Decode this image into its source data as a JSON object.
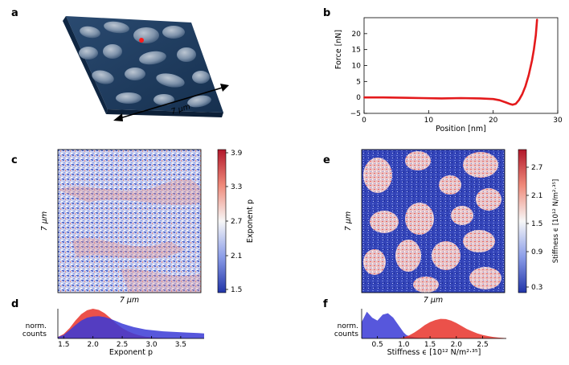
{
  "panels": {
    "a": {
      "letter": "a",
      "scale_label": "7 μm"
    },
    "b": {
      "letter": "b"
    },
    "c": {
      "letter": "c",
      "x_label": "7 μm",
      "y_label": "7 μm",
      "colorbar": {
        "label": "Exponent p",
        "ticks": [
          "3.9",
          "3.3",
          "2.7",
          "2.1",
          "1.5"
        ],
        "high_color": "#d7191c",
        "mid_color": "#f7f7f7",
        "low_color": "#2c3fb8"
      }
    },
    "d": {
      "letter": "d",
      "ylabel_line1": "norm.",
      "ylabel_line2": "counts",
      "xlabel": "Exponent p"
    },
    "e": {
      "letter": "e",
      "x_label": "7 μm",
      "y_label": "7 μm",
      "colorbar": {
        "label": "Stiffness ϵ [10¹² N/m²·³⁵]",
        "ticks": [
          "2.7",
          "2.1",
          "1.5",
          "0.9",
          "0.3"
        ]
      }
    },
    "f": {
      "letter": "f",
      "ylabel_line1": "norm.",
      "ylabel_line2": "counts",
      "xlabel": "Stiffness ϵ [10¹² N/m²·³⁵]"
    }
  },
  "chart_data": [
    {
      "type": "line",
      "panel": "b",
      "title": "",
      "xlabel": "Position [nm]",
      "ylabel": "Force [nN]",
      "xlim": [
        0,
        30
      ],
      "ylim": [
        -5,
        25
      ],
      "x_ticks": [
        "0",
        "10",
        "20",
        "30"
      ],
      "y_ticks": [
        "−5",
        "0",
        "5",
        "10",
        "15",
        "20"
      ],
      "line_color": "#e41a1c",
      "x": [
        0,
        3,
        6,
        9,
        12,
        15,
        18,
        20,
        21,
        22,
        22.5,
        23,
        23.5,
        24,
        24.5,
        25,
        25.5,
        26,
        26.3,
        26.6,
        26.8
      ],
      "y": [
        0,
        0,
        -0.1,
        -0.2,
        -0.3,
        -0.2,
        -0.3,
        -0.5,
        -0.9,
        -1.6,
        -2.0,
        -2.3,
        -2.0,
        -0.8,
        1.0,
        3.5,
        7.0,
        11.5,
        15.0,
        19.5,
        24.5
      ]
    },
    {
      "type": "area",
      "panel": "d",
      "xlabel": "Exponent p",
      "ylabel": "norm. counts",
      "xlim": [
        1.4,
        3.9
      ],
      "x_ticks": [
        "1.5",
        "2.0",
        "2.5",
        "3.0",
        "3.5"
      ],
      "series": [
        {
          "name": "red",
          "color": "#e8322a",
          "x": [
            1.4,
            1.5,
            1.6,
            1.7,
            1.8,
            1.9,
            2.0,
            2.1,
            2.2,
            2.3,
            2.4,
            2.5,
            2.6,
            2.7,
            2.8,
            2.9,
            3.0,
            3.2,
            3.5,
            3.9
          ],
          "y": [
            0.05,
            0.15,
            0.35,
            0.6,
            0.82,
            0.95,
            1.0,
            0.96,
            0.85,
            0.68,
            0.5,
            0.35,
            0.24,
            0.16,
            0.1,
            0.06,
            0.04,
            0.02,
            0.01,
            0.0
          ]
        },
        {
          "name": "blue",
          "color": "#3a3ad6",
          "x": [
            1.4,
            1.5,
            1.6,
            1.7,
            1.8,
            1.9,
            2.0,
            2.1,
            2.2,
            2.3,
            2.4,
            2.5,
            2.6,
            2.7,
            2.8,
            2.9,
            3.0,
            3.2,
            3.4,
            3.6,
            3.8,
            3.9
          ],
          "y": [
            0.05,
            0.12,
            0.28,
            0.45,
            0.6,
            0.7,
            0.74,
            0.75,
            0.72,
            0.66,
            0.58,
            0.5,
            0.44,
            0.38,
            0.34,
            0.3,
            0.28,
            0.24,
            0.22,
            0.2,
            0.18,
            0.17
          ]
        }
      ]
    },
    {
      "type": "area",
      "panel": "f",
      "xlabel": "Stiffness ϵ [10¹² N/m²·³⁵]",
      "ylabel": "norm. counts",
      "xlim": [
        0.2,
        2.95
      ],
      "x_ticks": [
        "0.5",
        "1.0",
        "1.5",
        "2.0",
        "2.5"
      ],
      "series": [
        {
          "name": "blue",
          "color": "#3a3ad6",
          "x": [
            0.2,
            0.3,
            0.4,
            0.5,
            0.6,
            0.7,
            0.8,
            0.9,
            1.0,
            1.05,
            1.1,
            1.2,
            1.3,
            1.4,
            1.5
          ],
          "y": [
            0.55,
            0.9,
            0.7,
            0.6,
            0.8,
            0.85,
            0.7,
            0.45,
            0.2,
            0.12,
            0.08,
            0.04,
            0.02,
            0.01,
            0.0
          ]
        },
        {
          "name": "red",
          "color": "#e8322a",
          "x": [
            0.9,
            1.0,
            1.1,
            1.2,
            1.3,
            1.4,
            1.5,
            1.6,
            1.7,
            1.8,
            1.9,
            2.0,
            2.1,
            2.2,
            2.3,
            2.4,
            2.5,
            2.6,
            2.7,
            2.8,
            2.95
          ],
          "y": [
            0.0,
            0.04,
            0.1,
            0.2,
            0.32,
            0.45,
            0.55,
            0.62,
            0.66,
            0.65,
            0.6,
            0.52,
            0.42,
            0.32,
            0.24,
            0.17,
            0.12,
            0.08,
            0.05,
            0.03,
            0.01
          ]
        }
      ]
    }
  ]
}
